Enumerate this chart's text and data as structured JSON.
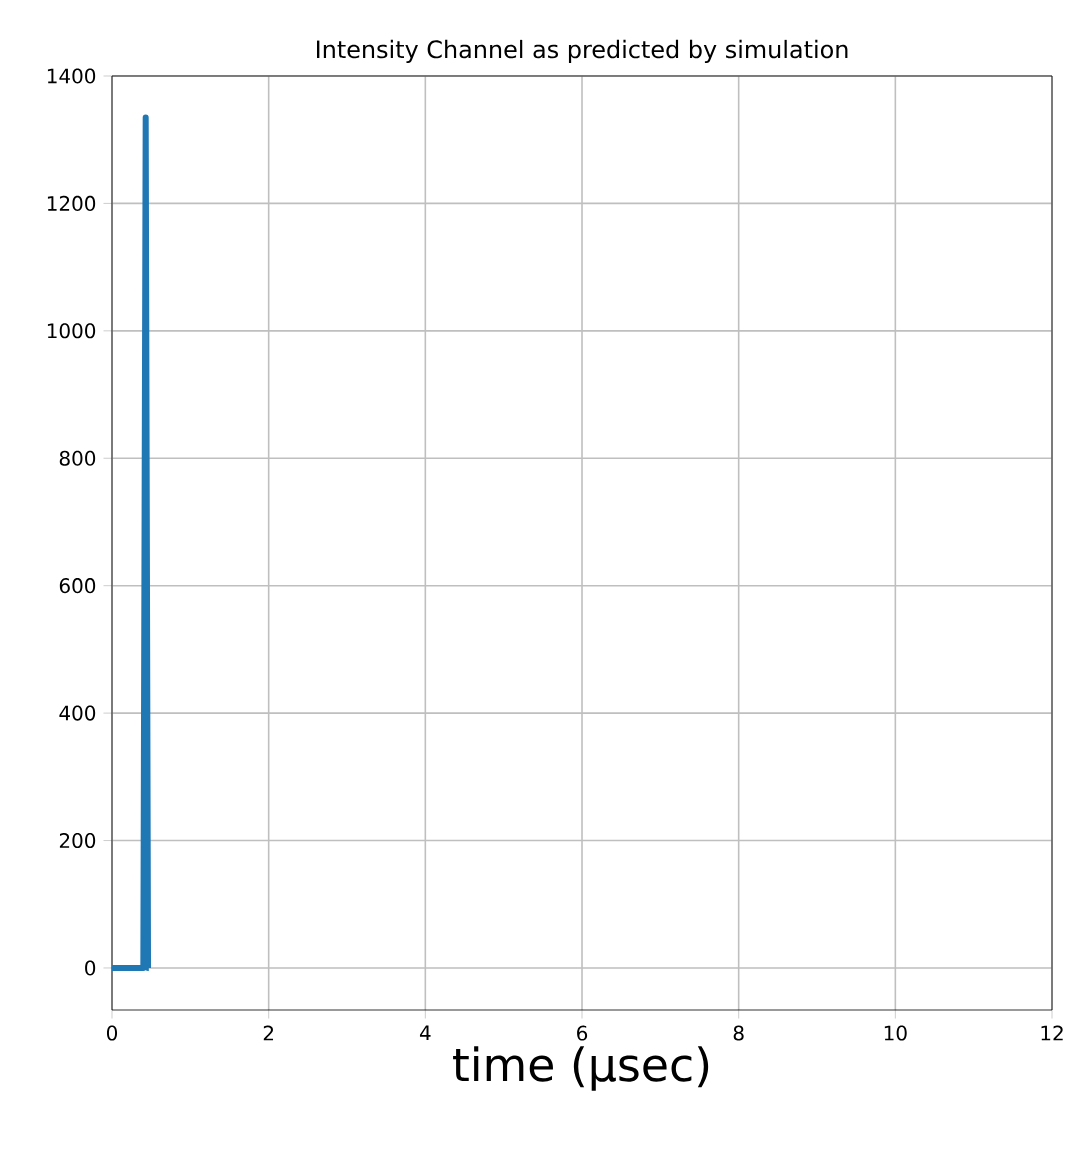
{
  "chart_data": {
    "type": "line",
    "title": "Intensity Channel as predicted by simulation",
    "xlabel": "time (μsec)",
    "x": [
      0,
      0.4,
      0.43,
      0.46,
      0.47
    ],
    "series": [
      {
        "color": "#1f77b4",
        "values": [
          0,
          0,
          1335,
          0,
          0
        ]
      }
    ],
    "xlim": [
      0,
      12
    ],
    "ylim": [
      -66,
      1400
    ],
    "xticks": [
      0,
      2,
      4,
      6,
      8,
      10,
      12
    ],
    "yticks": [
      0,
      200,
      400,
      600,
      800,
      1000,
      1200,
      1400
    ],
    "grid": true,
    "line_style": "solid"
  }
}
